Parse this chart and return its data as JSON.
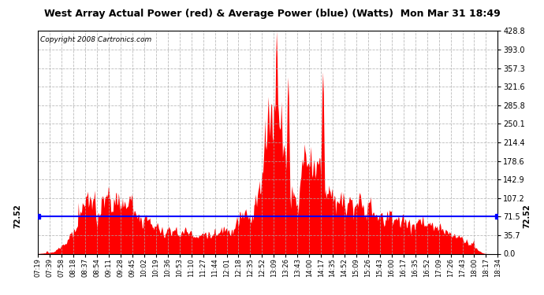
{
  "title": "West Array Actual Power (red) & Average Power (blue) (Watts)  Mon Mar 31 18:49",
  "copyright": "Copyright 2008 Cartronics.com",
  "avg_power": 72.52,
  "ymax": 428.8,
  "ymin": 0.0,
  "yticks": [
    0.0,
    35.7,
    71.5,
    107.2,
    142.9,
    178.6,
    214.4,
    250.1,
    285.8,
    321.6,
    357.3,
    393.0,
    428.8
  ],
  "xtick_labels": [
    "07:19",
    "07:39",
    "07:58",
    "08:18",
    "08:37",
    "08:54",
    "09:11",
    "09:28",
    "09:45",
    "10:02",
    "10:19",
    "10:36",
    "10:53",
    "11:10",
    "11:27",
    "11:44",
    "12:01",
    "12:18",
    "12:35",
    "12:52",
    "13:09",
    "13:26",
    "13:43",
    "14:00",
    "14:17",
    "14:35",
    "14:52",
    "15:09",
    "15:26",
    "15:43",
    "16:00",
    "16:17",
    "16:35",
    "16:52",
    "17:09",
    "17:26",
    "17:43",
    "18:00",
    "18:17",
    "18:34"
  ],
  "bg_color": "#ffffff",
  "plot_bg": "#ffffff",
  "red_color": "#ff0000",
  "blue_color": "#0000ff",
  "grid_color": "#aaaaaa",
  "border_color": "#000000",
  "avg_label": "72.52"
}
